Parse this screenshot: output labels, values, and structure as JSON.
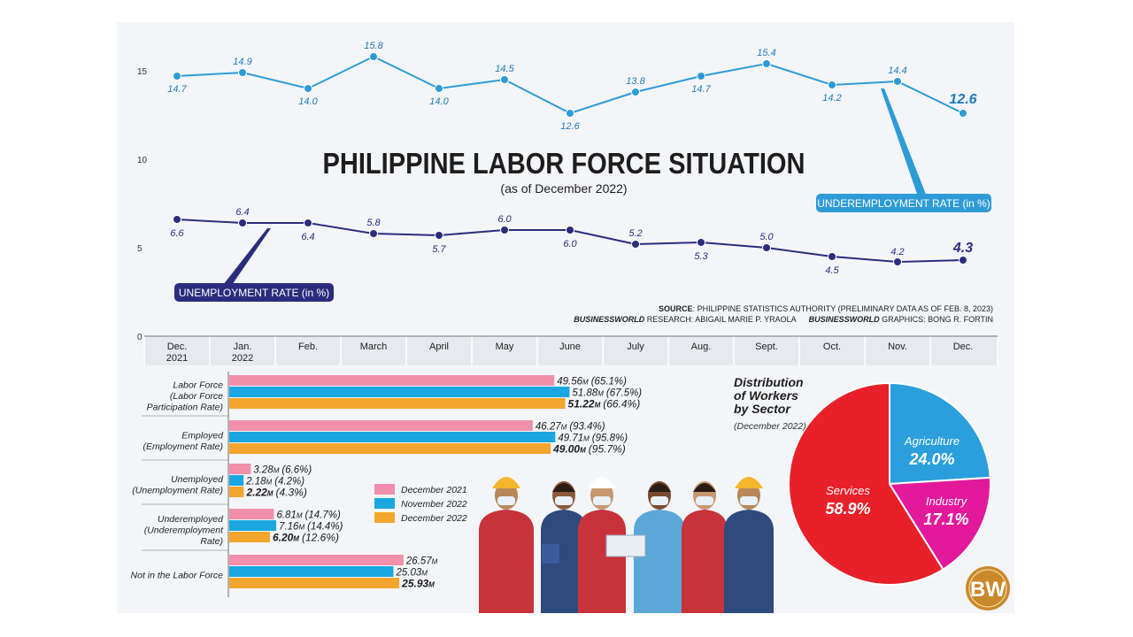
{
  "title": "PHILIPPINE LABOR FORCE SITUATION",
  "subtitle": "(as of December 2022)",
  "source": {
    "source_label": "SOURCE",
    "source_text": ": PHILIPPINE STATISTICS AUTHORITY (PRELIMINARY DATA AS OF FEB. 8, 2023)",
    "research_label": "BUSINESSWORLD",
    "research_text": " RESEARCH: ABIGAIL MARIE P. YRAOLA",
    "graphics_label": "BUSINESSWORLD",
    "graphics_text": " GRAPHICS: BONG R. FORTIN"
  },
  "logo": "BW",
  "colors": {
    "underemployment": "#2e9bd6",
    "unemployment": "#2b2c7c",
    "dec2021": "#f28fab",
    "nov2022": "#1aa7e0",
    "dec2022": "#f2a62e",
    "services": "#e8202a",
    "agriculture": "#2a9fdc",
    "industry": "#e2199a"
  },
  "chart_data": [
    {
      "type": "line",
      "categories": [
        "Dec.|2021",
        "Jan.|2022",
        "Feb.",
        "March",
        "April",
        "May",
        "June",
        "July",
        "Aug.",
        "Sept.",
        "Oct.",
        "Nov.",
        "Dec."
      ],
      "y_ticks": [
        "0",
        "5",
        "10",
        "15"
      ],
      "ylim": [
        0,
        17
      ],
      "series": [
        {
          "name": "UNDEREMPLOYMENT RATE (in %)",
          "values": [
            14.7,
            14.9,
            14.0,
            15.8,
            14.0,
            14.5,
            12.6,
            13.8,
            14.7,
            15.4,
            14.2,
            14.4,
            12.6
          ],
          "labels": [
            "14.7",
            "14.9",
            "14.0",
            "15.8",
            "14.0",
            "14.5",
            "12.6",
            "13.8",
            "14.7",
            "15.4",
            "14.2",
            "14.4",
            "12.6"
          ]
        },
        {
          "name": "UNEMPLOYMENT RATE (in %)",
          "values": [
            6.6,
            6.4,
            6.4,
            5.8,
            5.7,
            6.0,
            6.0,
            5.2,
            5.3,
            5.0,
            4.5,
            4.2,
            4.3
          ],
          "labels": [
            "6.6",
            "6.4",
            "6.4",
            "5.8",
            "5.7",
            "6.0",
            "6.0",
            "5.2",
            "5.3",
            "5.0",
            "4.5",
            "4.2",
            "4.3"
          ]
        }
      ]
    },
    {
      "type": "bar",
      "orientation": "horizontal",
      "unit": "M",
      "legend": [
        "December 2021",
        "November 2022",
        "December 2022"
      ],
      "groups": [
        {
          "label": [
            "Labor Force",
            "(Labor Force",
            "Participation Rate)"
          ],
          "values": [
            49.56,
            51.88,
            51.22
          ],
          "labels": [
            "49.56",
            "51.88",
            "51.22"
          ],
          "rates": [
            "(65.1%)",
            "(67.5%)",
            "(66.4%)"
          ]
        },
        {
          "label": [
            "Employed",
            "(Employment Rate)"
          ],
          "values": [
            46.27,
            49.71,
            49.0
          ],
          "labels": [
            "46.27",
            "49.71",
            "49.00"
          ],
          "rates": [
            "(93.4%)",
            "(95.8%)",
            "(95.7%)"
          ]
        },
        {
          "label": [
            "Unemployed",
            "(Unemployment Rate)"
          ],
          "values": [
            3.28,
            2.18,
            2.22
          ],
          "labels": [
            "3.28",
            "2.18",
            "2.22"
          ],
          "rates": [
            "(6.6%)",
            "(4.2%)",
            "(4.3%)"
          ]
        },
        {
          "label": [
            "Underemployed",
            "(Underemployment",
            "Rate)"
          ],
          "values": [
            6.81,
            7.16,
            6.2
          ],
          "labels": [
            "6.81",
            "7.16",
            "6.20"
          ],
          "rates": [
            "(14.7%)",
            "(14.4%)",
            "(12.6%)"
          ]
        },
        {
          "label": [
            "Not in the Labor Force"
          ],
          "values": [
            26.57,
            25.03,
            25.93
          ],
          "labels": [
            "26.57",
            "25.03",
            "25.93"
          ],
          "rates": [
            "",
            "",
            ""
          ]
        }
      ]
    },
    {
      "type": "pie",
      "title": [
        "Distribution",
        "of Workers",
        "by Sector"
      ],
      "subtitle": "(December 2022)",
      "slices": [
        {
          "name": "Agriculture",
          "value": 24.0,
          "label": "24.0%"
        },
        {
          "name": "Industry",
          "value": 17.1,
          "label": "17.1%"
        },
        {
          "name": "Services",
          "value": 58.9,
          "label": "58.9%"
        }
      ]
    }
  ]
}
